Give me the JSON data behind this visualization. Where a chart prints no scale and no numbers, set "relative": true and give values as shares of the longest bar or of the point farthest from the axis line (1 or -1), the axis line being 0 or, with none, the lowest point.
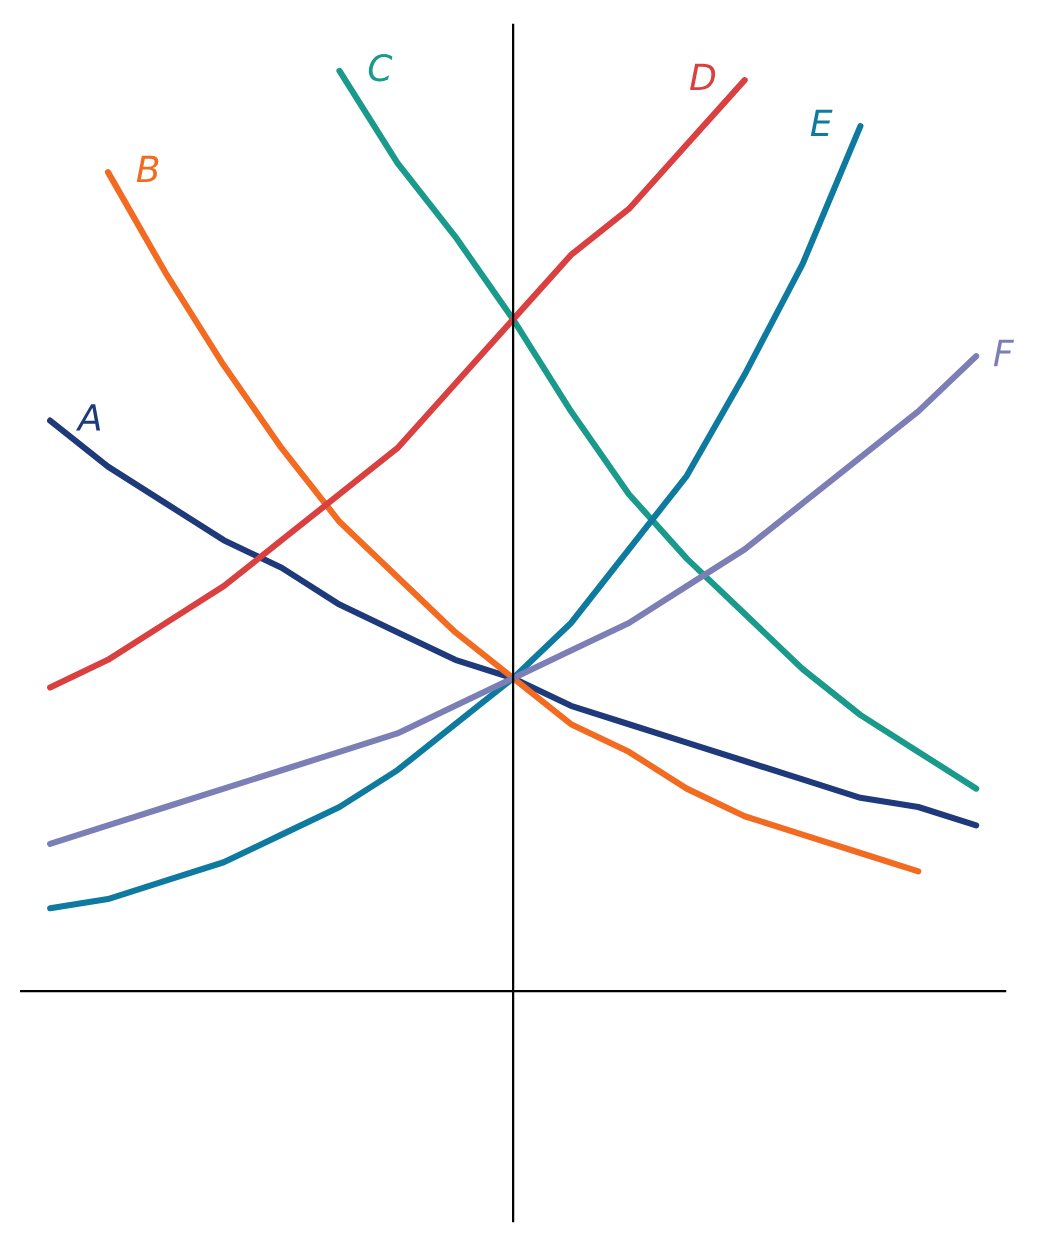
{
  "chart_data": {
    "type": "line",
    "relative": true,
    "legend": false,
    "marker": "none",
    "line_style": "solid",
    "categories": [
      null,
      null,
      null,
      null,
      null,
      null,
      null,
      null,
      null,
      null,
      null,
      null,
      null,
      null,
      null,
      null,
      null
    ],
    "series": [
      {
        "name": "A",
        "color": "#1f3a7a",
        "values": [
          0.62,
          0.57,
          0.53,
          0.49,
          0.46,
          0.42,
          0.39,
          0.36,
          0.34,
          0.31,
          0.29,
          0.27,
          0.25,
          0.23,
          0.21,
          0.2,
          0.18
        ]
      },
      {
        "name": "B",
        "color": "#f26b21",
        "values": [
          null,
          0.89,
          0.78,
          0.68,
          0.59,
          0.51,
          0.45,
          0.39,
          0.34,
          0.29,
          0.26,
          0.22,
          0.19,
          0.17,
          0.15,
          0.13,
          null
        ]
      },
      {
        "name": "C",
        "color": "#1a9a8a",
        "values": [
          null,
          null,
          null,
          null,
          null,
          1.0,
          0.9,
          0.82,
          0.73,
          0.63,
          0.54,
          0.47,
          0.41,
          0.35,
          0.3,
          0.26,
          0.22
        ]
      },
      {
        "name": "D",
        "color": "#d9403f",
        "values": [
          0.33,
          0.36,
          0.4,
          0.44,
          0.49,
          0.54,
          0.59,
          0.66,
          0.73,
          0.8,
          0.85,
          0.92,
          0.99,
          null,
          null,
          null,
          null
        ]
      },
      {
        "name": "E",
        "color": "#0e7aa0",
        "values": [
          0.09,
          0.1,
          0.12,
          0.14,
          0.17,
          0.2,
          0.24,
          0.29,
          0.34,
          0.4,
          0.48,
          0.56,
          0.67,
          0.79,
          0.94,
          null,
          null
        ]
      },
      {
        "name": "F",
        "color": "#7b7fb5",
        "values": [
          0.16,
          0.18,
          0.2,
          0.22,
          0.24,
          0.26,
          0.28,
          0.31,
          0.34,
          0.37,
          0.4,
          0.44,
          0.48,
          0.53,
          0.58,
          0.63,
          0.69
        ]
      }
    ]
  }
}
